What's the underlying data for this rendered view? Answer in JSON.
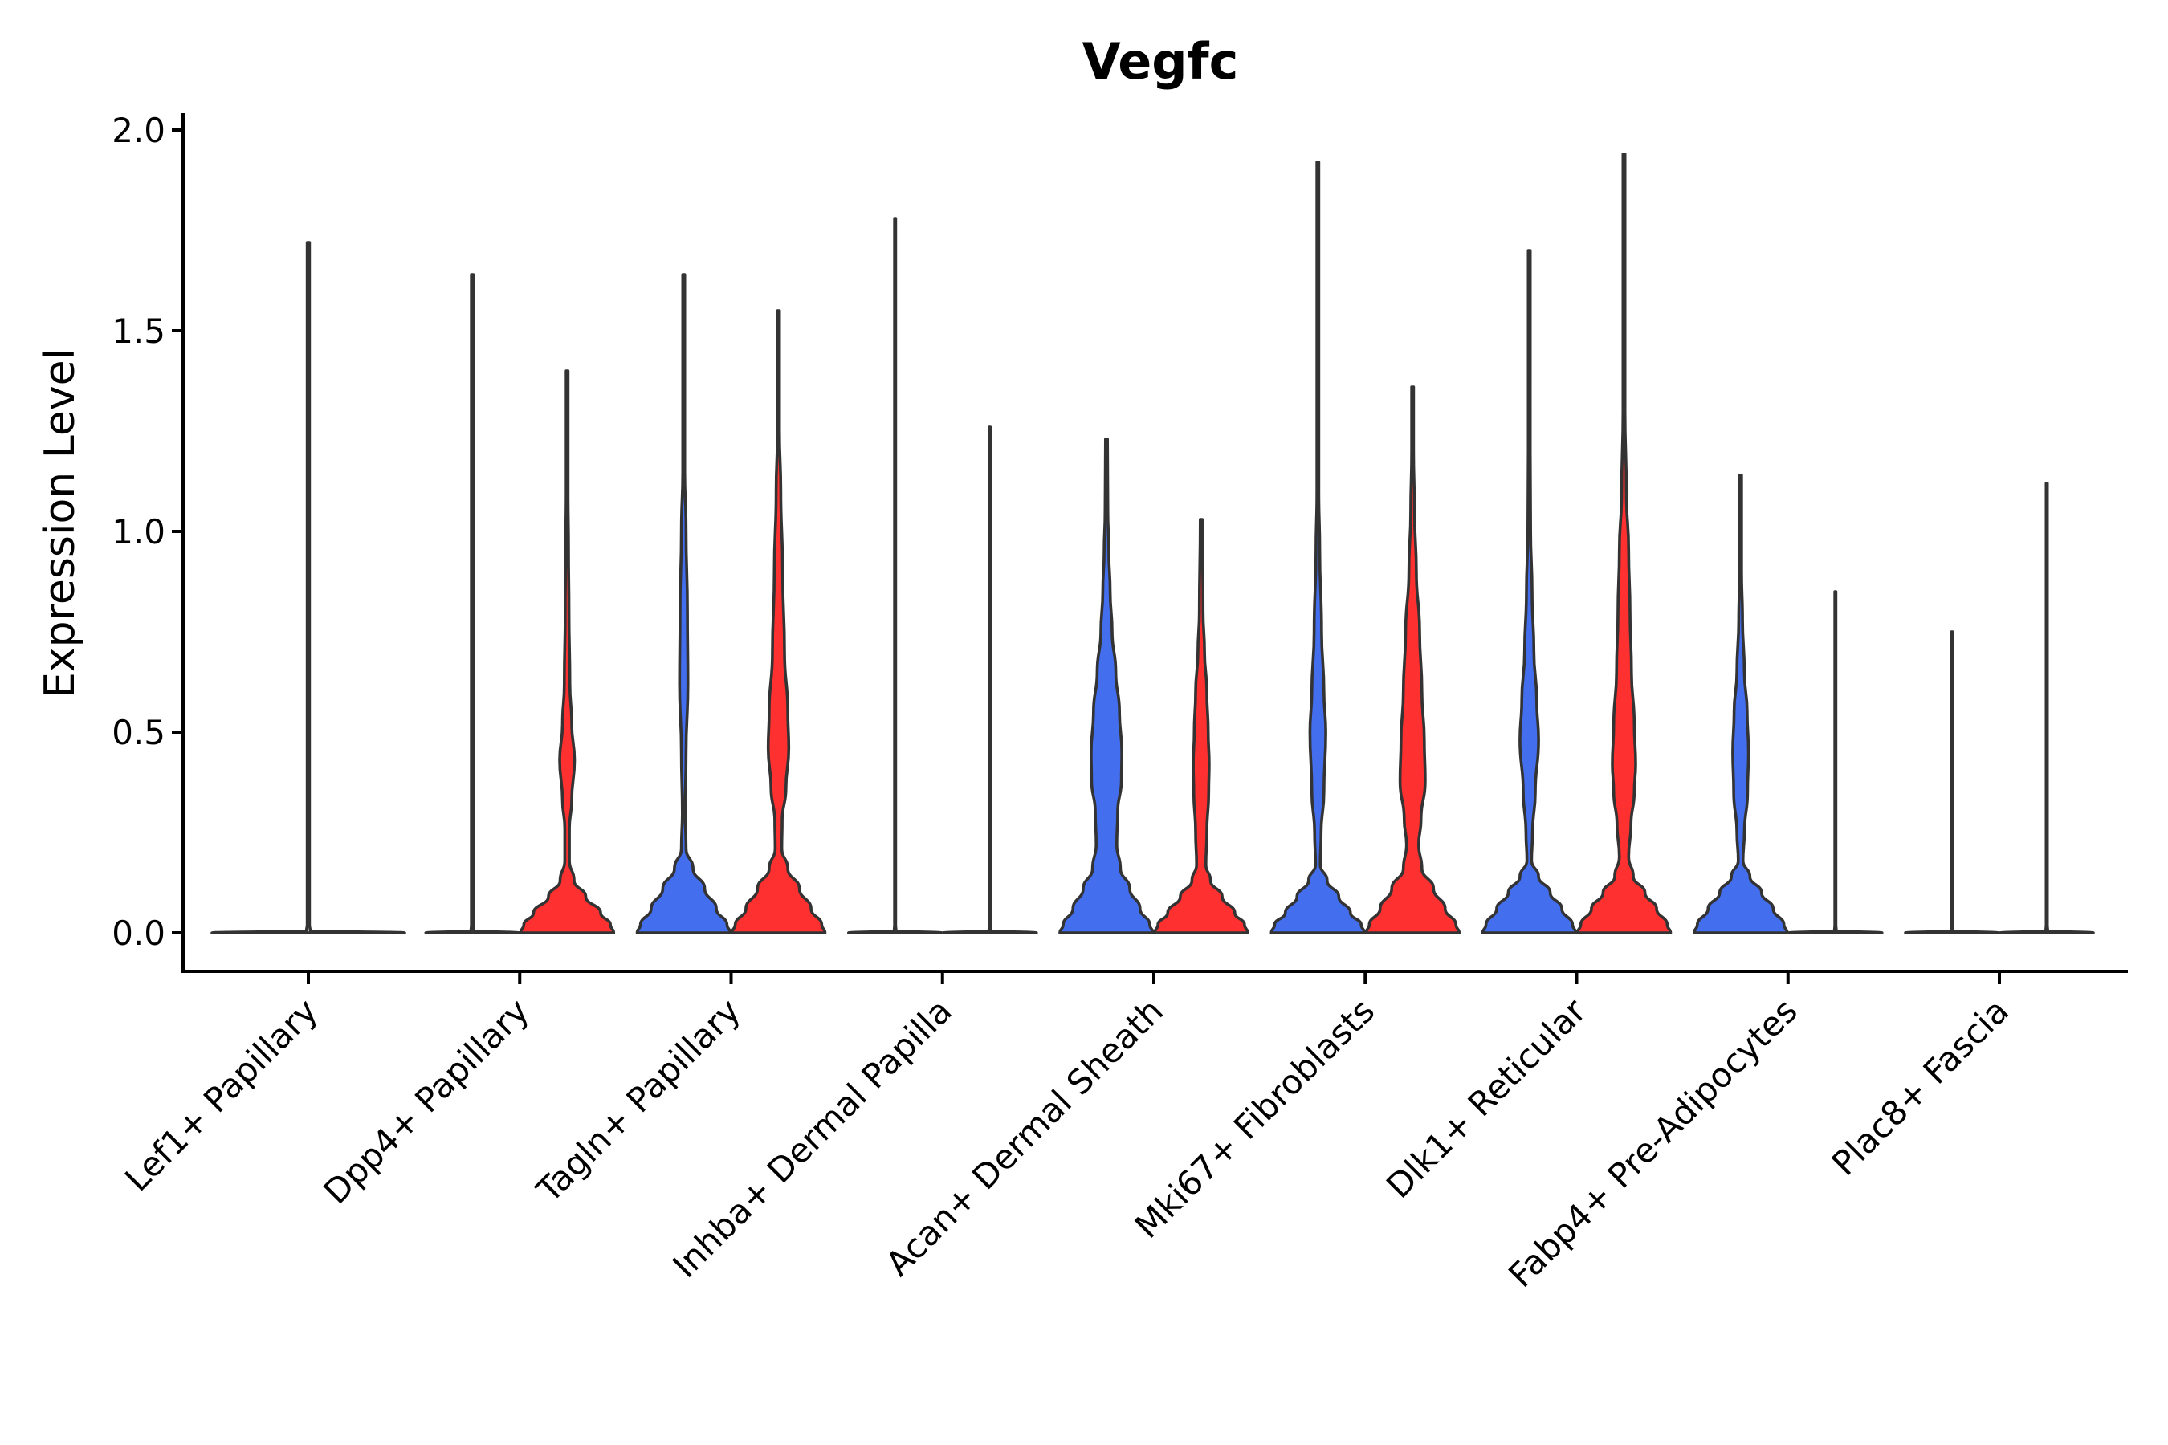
{
  "chart_data": {
    "type": "violin",
    "title": "Vegfc",
    "xlabel": "",
    "ylabel": "Expression Level",
    "ylim": [
      -0.1,
      2.05
    ],
    "yticks": [
      "0.0",
      "0.5",
      "1.0",
      "1.5",
      "2.0"
    ],
    "ytick_values": [
      0.0,
      0.5,
      1.0,
      1.5,
      2.0
    ],
    "grid": false,
    "legend": "none",
    "groups": [
      {
        "name": "group-1",
        "color": "#436EEE"
      },
      {
        "name": "group-2",
        "color": "#FF3030"
      }
    ],
    "categories": [
      "Lef1+ Papillary",
      "Dpp4+ Papillary",
      "Tagln+ Papillary",
      "Inhba+ Dermal Papilla",
      "Acan+ Dermal Sheath",
      "Mki67+ Fibroblasts",
      "Dlk1+ Reticular",
      "Fabp4+ Pre-Adipocytes",
      "Plac8+ Fascia"
    ],
    "violins": [
      {
        "category": 0,
        "group": "single",
        "fill": "#FFFFFF",
        "max": 1.72,
        "profile": [
          [
            0,
            1
          ],
          [
            0.005,
            0.02
          ],
          [
            0.02,
            0.012
          ],
          [
            1.72,
            0.012
          ]
        ]
      },
      {
        "category": 1,
        "group": "group-1",
        "fill": "#FFFFFF",
        "max": 1.64,
        "profile": [
          [
            0,
            1
          ],
          [
            0.005,
            0.03
          ],
          [
            0.02,
            0.02
          ],
          [
            1.64,
            0.02
          ]
        ]
      },
      {
        "category": 1,
        "group": "group-2",
        "fill": "#FF3030",
        "max": 1.4,
        "profile": [
          [
            0,
            1
          ],
          [
            0.02,
            0.93
          ],
          [
            0.05,
            0.72
          ],
          [
            0.09,
            0.4
          ],
          [
            0.13,
            0.15
          ],
          [
            0.18,
            0.05
          ],
          [
            0.26,
            0.05
          ],
          [
            0.33,
            0.1
          ],
          [
            0.43,
            0.16
          ],
          [
            0.52,
            0.1
          ],
          [
            0.62,
            0.06
          ],
          [
            0.8,
            0.04
          ],
          [
            0.95,
            0.03
          ],
          [
            1.1,
            0.02
          ],
          [
            1.4,
            0.02
          ]
        ]
      },
      {
        "category": 2,
        "group": "group-1",
        "fill": "#436EEE",
        "max": 1.64,
        "profile": [
          [
            0,
            1
          ],
          [
            0.02,
            0.93
          ],
          [
            0.06,
            0.7
          ],
          [
            0.11,
            0.45
          ],
          [
            0.16,
            0.2
          ],
          [
            0.21,
            0.05
          ],
          [
            0.3,
            0.03
          ],
          [
            0.45,
            0.05
          ],
          [
            0.62,
            0.09
          ],
          [
            0.8,
            0.08
          ],
          [
            1.0,
            0.05
          ],
          [
            1.15,
            0.02
          ],
          [
            1.3,
            0.02
          ],
          [
            1.64,
            0.02
          ]
        ]
      },
      {
        "category": 2,
        "group": "group-2",
        "fill": "#FF3030",
        "max": 1.55,
        "profile": [
          [
            0,
            1
          ],
          [
            0.02,
            0.93
          ],
          [
            0.06,
            0.7
          ],
          [
            0.11,
            0.45
          ],
          [
            0.16,
            0.2
          ],
          [
            0.21,
            0.07
          ],
          [
            0.28,
            0.08
          ],
          [
            0.36,
            0.16
          ],
          [
            0.46,
            0.22
          ],
          [
            0.55,
            0.2
          ],
          [
            0.7,
            0.13
          ],
          [
            0.9,
            0.09
          ],
          [
            1.1,
            0.05
          ],
          [
            1.25,
            0.02
          ],
          [
            1.55,
            0.02
          ]
        ]
      },
      {
        "category": 3,
        "group": "group-1",
        "fill": "#FFFFFF",
        "max": 1.78,
        "profile": [
          [
            0,
            1
          ],
          [
            0.005,
            0.02
          ],
          [
            0.02,
            0.012
          ],
          [
            1.78,
            0.012
          ]
        ]
      },
      {
        "category": 3,
        "group": "group-2",
        "fill": "#FFFFFF",
        "max": 1.26,
        "profile": [
          [
            0,
            1
          ],
          [
            0.005,
            0.02
          ],
          [
            0.02,
            0.012
          ],
          [
            1.26,
            0.012
          ]
        ]
      },
      {
        "category": 4,
        "group": "group-1",
        "fill": "#436EEE",
        "max": 1.23,
        "profile": [
          [
            0,
            1
          ],
          [
            0.02,
            0.93
          ],
          [
            0.06,
            0.72
          ],
          [
            0.11,
            0.5
          ],
          [
            0.16,
            0.3
          ],
          [
            0.22,
            0.22
          ],
          [
            0.3,
            0.24
          ],
          [
            0.38,
            0.32
          ],
          [
            0.45,
            0.33
          ],
          [
            0.55,
            0.28
          ],
          [
            0.65,
            0.2
          ],
          [
            0.75,
            0.12
          ],
          [
            0.85,
            0.08
          ],
          [
            0.95,
            0.05
          ],
          [
            1.05,
            0.03
          ],
          [
            1.23,
            0.02
          ]
        ]
      },
      {
        "category": 4,
        "group": "group-2",
        "fill": "#FF3030",
        "max": 1.03,
        "profile": [
          [
            0,
            1
          ],
          [
            0.02,
            0.93
          ],
          [
            0.05,
            0.72
          ],
          [
            0.09,
            0.45
          ],
          [
            0.13,
            0.2
          ],
          [
            0.17,
            0.1
          ],
          [
            0.25,
            0.12
          ],
          [
            0.35,
            0.16
          ],
          [
            0.42,
            0.17
          ],
          [
            0.5,
            0.15
          ],
          [
            0.6,
            0.12
          ],
          [
            0.7,
            0.07
          ],
          [
            0.8,
            0.04
          ],
          [
            1.03,
            0.02
          ]
        ]
      },
      {
        "category": 5,
        "group": "group-1",
        "fill": "#436EEE",
        "max": 1.92,
        "profile": [
          [
            0,
            1
          ],
          [
            0.02,
            0.93
          ],
          [
            0.05,
            0.7
          ],
          [
            0.09,
            0.45
          ],
          [
            0.13,
            0.2
          ],
          [
            0.17,
            0.05
          ],
          [
            0.25,
            0.07
          ],
          [
            0.35,
            0.13
          ],
          [
            0.5,
            0.17
          ],
          [
            0.6,
            0.13
          ],
          [
            0.75,
            0.08
          ],
          [
            0.95,
            0.04
          ],
          [
            1.1,
            0.02
          ],
          [
            1.92,
            0.02
          ]
        ]
      },
      {
        "category": 5,
        "group": "group-2",
        "fill": "#FF3030",
        "max": 1.36,
        "profile": [
          [
            0,
            1
          ],
          [
            0.02,
            0.93
          ],
          [
            0.06,
            0.7
          ],
          [
            0.11,
            0.45
          ],
          [
            0.16,
            0.2
          ],
          [
            0.22,
            0.13
          ],
          [
            0.28,
            0.18
          ],
          [
            0.38,
            0.27
          ],
          [
            0.48,
            0.25
          ],
          [
            0.6,
            0.2
          ],
          [
            0.75,
            0.15
          ],
          [
            0.9,
            0.08
          ],
          [
            1.05,
            0.04
          ],
          [
            1.2,
            0.02
          ],
          [
            1.36,
            0.02
          ]
        ]
      },
      {
        "category": 6,
        "group": "group-1",
        "fill": "#436EEE",
        "max": 1.7,
        "profile": [
          [
            0,
            1
          ],
          [
            0.02,
            0.93
          ],
          [
            0.06,
            0.7
          ],
          [
            0.1,
            0.45
          ],
          [
            0.14,
            0.2
          ],
          [
            0.18,
            0.05
          ],
          [
            0.25,
            0.07
          ],
          [
            0.35,
            0.13
          ],
          [
            0.48,
            0.2
          ],
          [
            0.58,
            0.16
          ],
          [
            0.7,
            0.1
          ],
          [
            0.85,
            0.06
          ],
          [
            1.0,
            0.03
          ],
          [
            1.2,
            0.02
          ],
          [
            1.7,
            0.02
          ]
        ]
      },
      {
        "category": 6,
        "group": "group-2",
        "fill": "#FF3030",
        "max": 1.94,
        "profile": [
          [
            0,
            1
          ],
          [
            0.02,
            0.93
          ],
          [
            0.06,
            0.7
          ],
          [
            0.1,
            0.45
          ],
          [
            0.14,
            0.2
          ],
          [
            0.19,
            0.1
          ],
          [
            0.27,
            0.15
          ],
          [
            0.35,
            0.22
          ],
          [
            0.42,
            0.25
          ],
          [
            0.52,
            0.22
          ],
          [
            0.65,
            0.16
          ],
          [
            0.8,
            0.13
          ],
          [
            0.95,
            0.1
          ],
          [
            1.1,
            0.05
          ],
          [
            1.3,
            0.02
          ],
          [
            1.94,
            0.02
          ]
        ]
      },
      {
        "category": 7,
        "group": "group-1",
        "fill": "#436EEE",
        "max": 1.14,
        "profile": [
          [
            0,
            1
          ],
          [
            0.02,
            0.93
          ],
          [
            0.06,
            0.7
          ],
          [
            0.1,
            0.45
          ],
          [
            0.14,
            0.2
          ],
          [
            0.18,
            0.05
          ],
          [
            0.25,
            0.08
          ],
          [
            0.35,
            0.15
          ],
          [
            0.45,
            0.17
          ],
          [
            0.55,
            0.14
          ],
          [
            0.65,
            0.08
          ],
          [
            0.78,
            0.04
          ],
          [
            0.9,
            0.02
          ],
          [
            1.14,
            0.02
          ]
        ]
      },
      {
        "category": 7,
        "group": "group-2",
        "fill": "#FFFFFF",
        "max": 0.85,
        "profile": [
          [
            0,
            1
          ],
          [
            0.005,
            0.02
          ],
          [
            0.02,
            0.012
          ],
          [
            0.85,
            0.012
          ]
        ]
      },
      {
        "category": 8,
        "group": "group-1",
        "fill": "#FFFFFF",
        "max": 0.75,
        "profile": [
          [
            0,
            1
          ],
          [
            0.005,
            0.02
          ],
          [
            0.02,
            0.012
          ],
          [
            0.75,
            0.012
          ]
        ]
      },
      {
        "category": 8,
        "group": "group-2",
        "fill": "#FFFFFF",
        "max": 1.12,
        "profile": [
          [
            0,
            1
          ],
          [
            0.005,
            0.02
          ],
          [
            0.02,
            0.012
          ],
          [
            1.12,
            0.012
          ]
        ]
      }
    ]
  }
}
